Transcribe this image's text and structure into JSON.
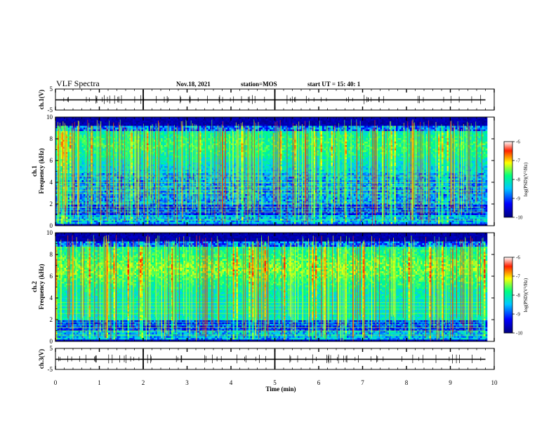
{
  "header": {
    "title": "VLF Spectra",
    "date": "Nov.18, 2021",
    "station": "station=MOS",
    "start": "start  UT  =  15: 40: 1"
  },
  "chart_data": [
    {
      "type": "line",
      "name": "ch1-waveform",
      "ylabel": "ch.1(V)",
      "ylim": [
        -5,
        5
      ],
      "yticks": [
        "5",
        "-5"
      ],
      "xlim": [
        0,
        10
      ],
      "baseline": 0
    },
    {
      "type": "heatmap",
      "name": "ch1-spectrogram",
      "ylabel_line1": "ch.1",
      "ylabel_line2": "Frequency (kHz)",
      "ylim": [
        0,
        10
      ],
      "yticks": [
        "0",
        "2",
        "4",
        "6",
        "8",
        "10"
      ],
      "xlim": [
        0,
        10
      ],
      "data_end_min": 9.8,
      "colorbar": {
        "label": "log(PSD)(V²/Hz)",
        "ticks": [
          "-6",
          "-7",
          "-8",
          "-9",
          "-10"
        ],
        "range": [
          -10,
          -6
        ]
      },
      "colors": [
        "#00007f",
        "#0000ff",
        "#00c8ff",
        "#00ff80",
        "#ffff00",
        "#ff2000"
      ]
    },
    {
      "type": "heatmap",
      "name": "ch2-spectrogram",
      "ylabel_line1": "ch.2",
      "ylabel_line2": "Frequency (kHz)",
      "ylim": [
        0,
        10
      ],
      "yticks": [
        "0",
        "2",
        "4",
        "6",
        "8",
        "10"
      ],
      "xlim": [
        0,
        10
      ],
      "data_end_min": 9.8,
      "colorbar": {
        "label": "log(PSD)(V²/Hz)",
        "ticks": [
          "-6",
          "-7",
          "-8",
          "-9",
          "-10"
        ],
        "range": [
          -10,
          -6
        ]
      },
      "colors": [
        "#00007f",
        "#0000ff",
        "#00c8ff",
        "#00ff80",
        "#ffff00",
        "#ff2000"
      ]
    },
    {
      "type": "line",
      "name": "ch3-waveform",
      "ylabel": "ch.3(V)",
      "ylim": [
        -5,
        5
      ],
      "yticks": [
        "5",
        "-5"
      ],
      "xlim": [
        0,
        10
      ],
      "baseline": 0
    }
  ],
  "x_axis": {
    "label": "Time  (min)",
    "ticks": [
      "0",
      "1",
      "2",
      "3",
      "4",
      "5",
      "6",
      "7",
      "8",
      "9",
      "10"
    ]
  }
}
